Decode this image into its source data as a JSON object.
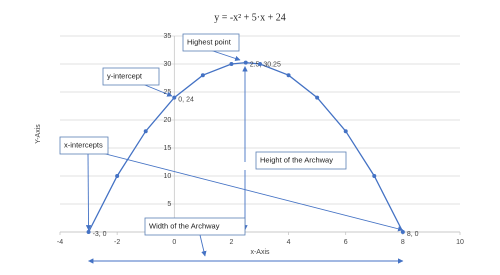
{
  "chart_data": {
    "type": "line",
    "title": "y = -x² + 5·x + 24",
    "x_label": "x-Axis",
    "y_label": "Y-Axis",
    "x": [
      -3,
      -2,
      -1,
      0,
      1,
      2,
      2.5,
      3,
      4,
      5,
      6,
      7,
      8
    ],
    "series": [
      {
        "name": "y",
        "color": "#4472c4",
        "values": [
          0,
          10,
          18,
          24,
          28,
          30,
          30.25,
          30,
          28,
          24,
          18,
          10,
          0
        ],
        "value_labels": [
          "-3, 0",
          null,
          null,
          "0, 24",
          null,
          null,
          "2.5, 30.25",
          null,
          null,
          null,
          null,
          null,
          "8, 0"
        ]
      }
    ],
    "xlim": [
      -4,
      10
    ],
    "xticks": [
      -4,
      -2,
      0,
      2,
      4,
      6,
      8,
      10
    ],
    "ylim": [
      0,
      35
    ],
    "yticks": [
      0,
      5,
      10,
      15,
      20,
      25,
      30,
      35
    ],
    "grid": true,
    "annotations": [
      {
        "text": "Highest point"
      },
      {
        "text": "y-intercept"
      },
      {
        "text": "x-intercepts"
      },
      {
        "text": "Height of the Archway"
      },
      {
        "text": "Width of the Archway"
      }
    ]
  }
}
